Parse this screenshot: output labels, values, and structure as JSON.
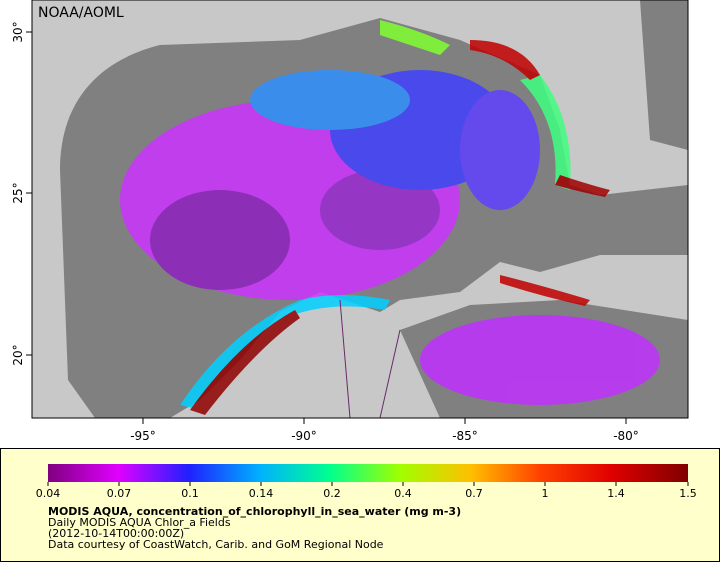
{
  "header": {
    "title": "NOAA/AOML"
  },
  "map": {
    "lat_labels": [
      "30°",
      "25°",
      "20°"
    ],
    "lon_labels": [
      "-95°",
      "-90°",
      "-85°",
      "-80°"
    ]
  },
  "legend": {
    "ticks": [
      "0.04",
      "0.07",
      "0.1",
      "0.14",
      "0.2",
      "0.4",
      "0.7",
      "1",
      "1.4",
      "1.5"
    ],
    "title": "MODIS AQUA, concentration_of_chlorophyll_in_sea_water (mg m-3)",
    "lines": [
      "Daily MODIS AQUA Chlor_a Fields",
      "(2012-10-14T00:00:00Z)",
      "Data courtesy of CoastWatch, Carib. and GoM Regional Node"
    ]
  }
}
